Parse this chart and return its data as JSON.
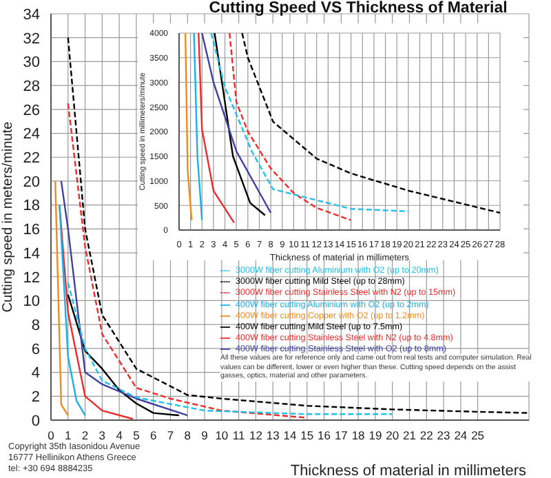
{
  "chart_data": [
    {
      "type": "line",
      "title": "Cutting Speed VS Thickness of Material",
      "xlabel": "Thickness of material in millimeters",
      "ylabel": "Cutting speed in meters/minute",
      "xlim": [
        0,
        28
      ],
      "xticks": [
        0,
        1,
        2,
        3,
        4,
        5,
        6,
        7,
        8,
        9,
        10,
        11,
        12,
        13,
        14,
        15,
        16,
        17,
        18,
        19,
        20,
        21,
        22,
        23,
        24,
        25
      ],
      "ylim": [
        0,
        34
      ],
      "yticks": [
        0,
        2,
        4,
        6,
        8,
        10,
        12,
        14,
        16,
        18,
        20,
        22,
        24,
        26,
        28,
        30,
        32,
        34
      ],
      "grid": true,
      "legend": "right",
      "marker": "none",
      "series": [
        {
          "name": "400W fiber cutting Mild Steel (up to 7.5mm)",
          "color": "#000000",
          "line_style": "solid",
          "x": [
            1,
            2,
            3,
            4,
            5,
            6,
            7.5
          ],
          "values": [
            10.5,
            5.8,
            4.3,
            2.5,
            1.4,
            0.6,
            0.4
          ]
        },
        {
          "name": "400W fiber cutting Stainless Steel with O2 (up to 8mm)",
          "color": "#4040a0",
          "line_style": "solid",
          "x": [
            0.6,
            1,
            2,
            3,
            5,
            8
          ],
          "values": [
            20,
            16,
            4,
            3,
            1.8,
            0.4
          ]
        },
        {
          "name": "400W fiber cutting Stainless Steel with N2 (up to 4.8mm)",
          "color": "#ee2a2a",
          "line_style": "solid",
          "x": [
            0.5,
            1,
            2,
            3,
            4.8
          ],
          "values": [
            18,
            9,
            2,
            0.8,
            0.1
          ]
        },
        {
          "name": "400W fiber cutting Aluminium with O2 (up to 2mm)",
          "color": "#1ab0e8",
          "line_style": "solid",
          "x": [
            0.5,
            1,
            1.5,
            2
          ],
          "values": [
            18,
            5.3,
            1.6,
            0.4
          ]
        },
        {
          "name": "400W fiber cutting Copper with O2 (up to 1.2mm)",
          "color": "#f08a1e",
          "line_style": "solid",
          "x": [
            0.25,
            0.6,
            1
          ],
          "values": [
            20,
            1.3,
            0.4
          ]
        },
        {
          "name": "3000W fiber cutting Mild Steel (up to 28mm)",
          "color": "#000000",
          "line_style": "dashed",
          "x": [
            1,
            2,
            3,
            5,
            8,
            10,
            15,
            20,
            25,
            28
          ],
          "values": [
            32,
            16,
            8.8,
            4.3,
            2.1,
            1.8,
            1.2,
            0.9,
            0.7,
            0.6
          ]
        },
        {
          "name": "3000W fiber cutting Stainless Steel with N2 (up to 15mm)",
          "color": "#ee2a2a",
          "line_style": "dashed",
          "x": [
            1,
            2,
            3,
            5,
            7,
            10,
            15
          ],
          "values": [
            26.5,
            14.5,
            7.2,
            2.7,
            1.8,
            0.8,
            0.2
          ]
        },
        {
          "name": "3000W fiber cutting Aluminium with O2 (up to 20mm)",
          "color": "#20c0e8",
          "line_style": "dashed",
          "x": [
            1,
            2,
            3,
            5,
            9,
            15,
            20
          ],
          "values": [
            11.5,
            6,
            3.3,
            1.9,
            0.8,
            0.5,
            0.5
          ]
        }
      ],
      "annotations": [
        "All these values are for reference only and came out from real tests and computer simulation. Real values can be different, lower or even higher than these. Cutting speed depends on the assist gasses, optics, material and other parameters.",
        "Copyright 35th Iasonidou Avenue",
        "16777 Hellinikon Athens Greece",
        "tel: +30 694 8884235"
      ]
    },
    {
      "type": "line",
      "xlabel": "Thickness of material in millimeters",
      "ylabel": "Cutting speed in millimeters/minute",
      "xlim": [
        0,
        28
      ],
      "xticks": [
        0,
        1,
        2,
        3,
        4,
        5,
        6,
        7,
        8,
        9,
        10,
        11,
        12,
        13,
        14,
        15,
        16,
        17,
        18,
        19,
        20,
        21,
        22,
        23,
        24,
        25,
        26,
        27,
        28
      ],
      "ylim": [
        0,
        4000
      ],
      "yticks": [
        0,
        500,
        1000,
        1500,
        2000,
        2500,
        3000,
        3500,
        4000
      ],
      "grid": true,
      "marker": "none",
      "series": [
        {
          "color": "#000000",
          "line_style": "solid",
          "x": [
            3.1,
            4.7,
            6.2,
            7.5
          ],
          "values": [
            4000,
            1500,
            550,
            300
          ]
        },
        {
          "color": "#4040a0",
          "line_style": "solid",
          "x": [
            2,
            3,
            5,
            8
          ],
          "values": [
            4000,
            3000,
            1600,
            350
          ]
        },
        {
          "color": "#ee2a2a",
          "line_style": "solid",
          "x": [
            1.7,
            2,
            3,
            4.8
          ],
          "values": [
            4000,
            2050,
            800,
            150
          ]
        },
        {
          "color": "#1ab0e8",
          "line_style": "solid",
          "x": [
            1.3,
            1.6,
            2
          ],
          "values": [
            4000,
            1500,
            200
          ]
        },
        {
          "color": "#f08a1e",
          "line_style": "solid",
          "x": [
            0.55,
            0.75,
            1.1
          ],
          "values": [
            4000,
            1200,
            200
          ]
        },
        {
          "color": "#000000",
          "line_style": "dashed",
          "x": [
            5.5,
            6,
            8.2,
            12,
            15,
            20,
            28
          ],
          "values": [
            4000,
            3500,
            2200,
            1450,
            1150,
            800,
            350
          ]
        },
        {
          "color": "#ee2a2a",
          "line_style": "dashed",
          "x": [
            4.4,
            5,
            6,
            8,
            10,
            12,
            15
          ],
          "values": [
            4000,
            2600,
            2000,
            1250,
            750,
            450,
            200
          ]
        },
        {
          "color": "#20c0e8",
          "line_style": "dashed",
          "x": [
            2.8,
            4,
            6.4,
            8.2,
            15,
            20
          ],
          "values": [
            4000,
            2900,
            1570,
            830,
            430,
            380
          ]
        }
      ]
    }
  ]
}
